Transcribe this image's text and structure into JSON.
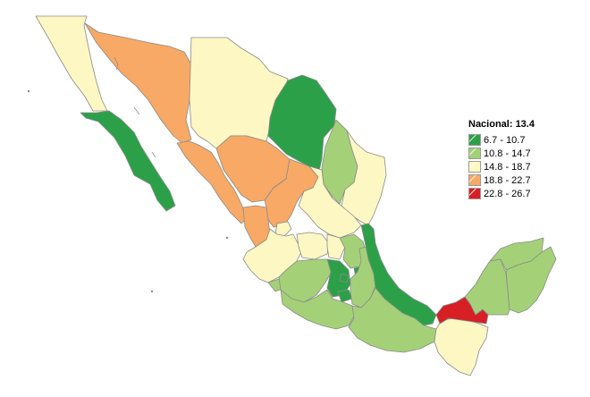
{
  "legend": {
    "title": "Nacional: 13.4",
    "classes": [
      {
        "label": "6.7 - 10.7",
        "color": "#2ca048"
      },
      {
        "label": "10.8 - 14.7",
        "color": "#a4d178"
      },
      {
        "label": "14.8 - 18.7",
        "color": "#fdf8c3"
      },
      {
        "label": "18.8 - 22.7",
        "color": "#f8a965"
      },
      {
        "label": "22.8 - 26.7",
        "color": "#d71f26"
      }
    ]
  }
}
